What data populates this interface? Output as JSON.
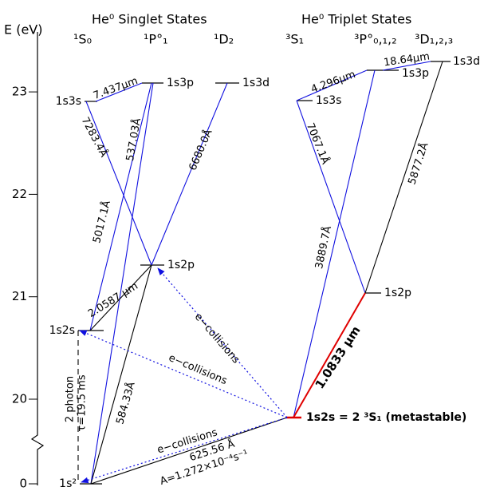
{
  "axis": {
    "label": "E (eV)",
    "ticks": [
      0,
      20,
      21,
      22,
      23
    ]
  },
  "singlet": {
    "title": "He⁰ Singlet States",
    "columns": [
      "¹S₀",
      "¹P°₁",
      "¹D₂"
    ]
  },
  "triplet": {
    "title": "He⁰ Triplet States",
    "columns": [
      "³S₁",
      "³P°₀,₁,₂",
      "³D₁,₂,₃"
    ]
  },
  "levels": [
    {
      "label": "1s²"
    },
    {
      "label": "1s2s"
    },
    {
      "label": "1s2p"
    },
    {
      "label": "1s3s"
    },
    {
      "label": "1s3p"
    },
    {
      "label": "1s3d"
    },
    {
      "label": "1s2s = 2 ³S₁ (metastable)"
    },
    {
      "label": "1s2p"
    },
    {
      "label": "1s3s"
    },
    {
      "label": "1s3p"
    },
    {
      "label": "1s3d"
    }
  ],
  "transitions": [
    {
      "label": "7.437μm"
    },
    {
      "label": "7283.4Å"
    },
    {
      "label": "6680.0Å"
    },
    {
      "label": "5017.1Å"
    },
    {
      "label": "537.03Å"
    },
    {
      "label": "2.0587 μm"
    },
    {
      "label": "584.33Å"
    },
    {
      "label": "2 photon"
    },
    {
      "label": "τ=19.5 ms"
    },
    {
      "label": "4.296μm"
    },
    {
      "label": "18.64μm"
    },
    {
      "label": "7067.1Å"
    },
    {
      "label": "3889.7Å"
    },
    {
      "label": "5877.2Å"
    },
    {
      "label": "1.0833 μm"
    },
    {
      "label": "625.56 Å"
    },
    {
      "label": "A=1.272×10⁻⁴s⁻¹"
    }
  ],
  "collisions": [
    {
      "label": "e−collisions"
    },
    {
      "label": "e−collisions"
    },
    {
      "label": "e−collisions"
    }
  ]
}
